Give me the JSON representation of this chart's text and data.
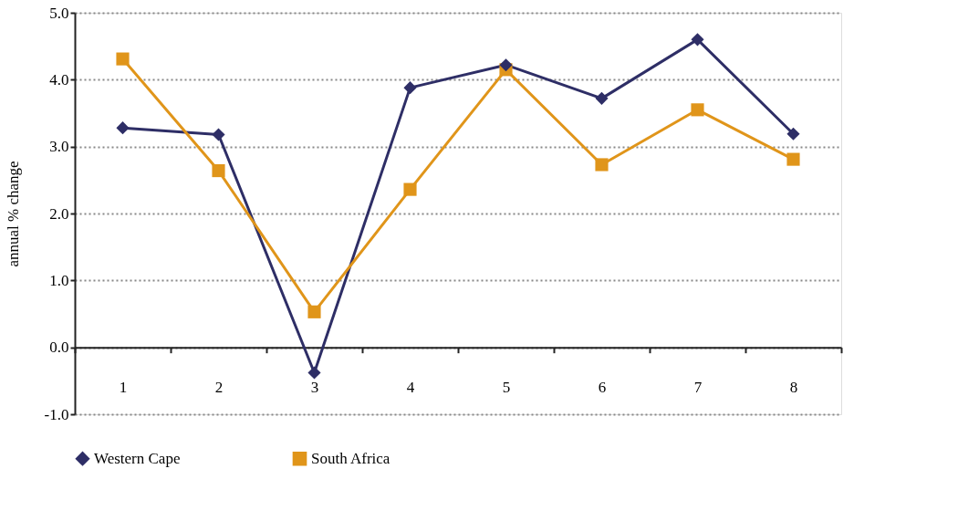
{
  "chart_data": {
    "type": "line",
    "ylabel": "annual % change",
    "categories": [
      "1",
      "2",
      "3",
      "4",
      "5",
      "6",
      "7",
      "8"
    ],
    "series": [
      {
        "name": "Western Cape",
        "color": "#2e2e66",
        "marker": "diamond",
        "values": [
          3.28,
          3.18,
          -0.38,
          3.88,
          4.22,
          3.72,
          4.6,
          3.19
        ]
      },
      {
        "name": "South Africa",
        "color": "#e0951a",
        "marker": "square",
        "values": [
          4.31,
          2.64,
          0.53,
          2.36,
          4.15,
          2.73,
          3.55,
          2.81
        ]
      }
    ],
    "ylim": [
      -1.0,
      5.0
    ],
    "yticks": [
      {
        "value": -1,
        "label": "-1.0"
      },
      {
        "value": 0,
        "label": "0.0"
      },
      {
        "value": 1,
        "label": "1.0"
      },
      {
        "value": 2,
        "label": "2.0"
      },
      {
        "value": 3,
        "label": "3.0"
      },
      {
        "value": 4,
        "label": "4.0"
      },
      {
        "value": 5,
        "label": "5.0"
      }
    ],
    "grid": "y",
    "legend": "bottom",
    "line_style": "solid"
  }
}
